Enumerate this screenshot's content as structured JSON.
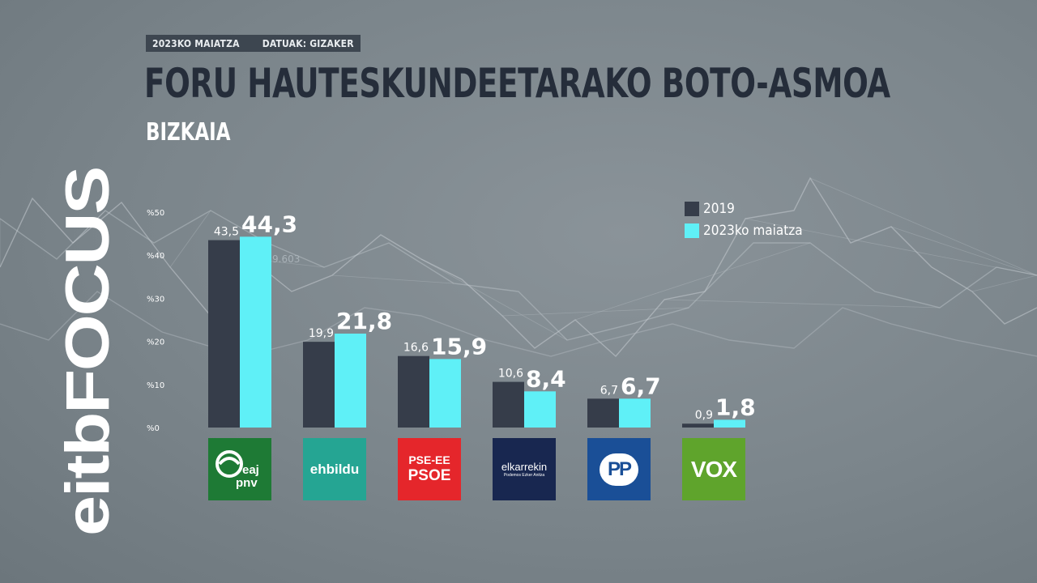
{
  "header": {
    "date": "2023KO MAIATZA",
    "source": "DATUAK: GIZAKER"
  },
  "title": "FORU HAUTESKUNDEETARAKO BOTO-ASMOA",
  "subtitle": "BIZKAIA",
  "brand": {
    "name": "eitbFOCUS"
  },
  "background_watermark": "9.603",
  "colors": {
    "series_2019": "#363d4a",
    "series_2023": "#5ff0f7",
    "background": "#7b858b"
  },
  "legend": [
    {
      "label": "2019",
      "color": "#363d4a"
    },
    {
      "label": "2023ko maiatza",
      "color": "#5ff0f7"
    }
  ],
  "parties": [
    {
      "logo_text": "eaj pnv",
      "line1": "eaj",
      "line2": "pnv",
      "color": "#1e7a35"
    },
    {
      "logo_text": "ehbildu",
      "color": "#25a593"
    },
    {
      "logo_text": "PSE-EE PSOE",
      "line1": "PSE-EE",
      "line2": "PSOE",
      "color": "#e5262b"
    },
    {
      "logo_text": "elkarrekin",
      "line2": "Podemos Ezker Anitza",
      "color": "#182750"
    },
    {
      "logo_text": "PP",
      "color": "#1a4f97"
    },
    {
      "logo_text": "VOX",
      "color": "#5fa42c"
    }
  ],
  "chart_data": {
    "type": "bar",
    "categories": [
      "EAJ-PNV",
      "EH Bildu",
      "PSE-EE PSOE",
      "Elkarrekin",
      "PP",
      "VOX"
    ],
    "series": [
      {
        "name": "2019",
        "values": [
          43.5,
          19.9,
          16.6,
          10.6,
          6.7,
          0.9
        ],
        "labels": [
          "43,5",
          "19,9",
          "16,6",
          "10,6",
          "6,7",
          "0,9"
        ]
      },
      {
        "name": "2023ko maiatza",
        "values": [
          44.3,
          21.8,
          15.9,
          8.4,
          6.7,
          1.8
        ],
        "labels": [
          "44,3",
          "21,8",
          "15,9",
          "8,4",
          "6,7",
          "1,8"
        ]
      }
    ],
    "yticks": [
      "%0",
      "%10",
      "%20",
      "%30",
      "%40",
      "%50"
    ],
    "yvalues": [
      0,
      10,
      20,
      30,
      40,
      50
    ],
    "ylim": [
      0,
      50
    ],
    "grid": false,
    "legend_position": "top-right"
  }
}
